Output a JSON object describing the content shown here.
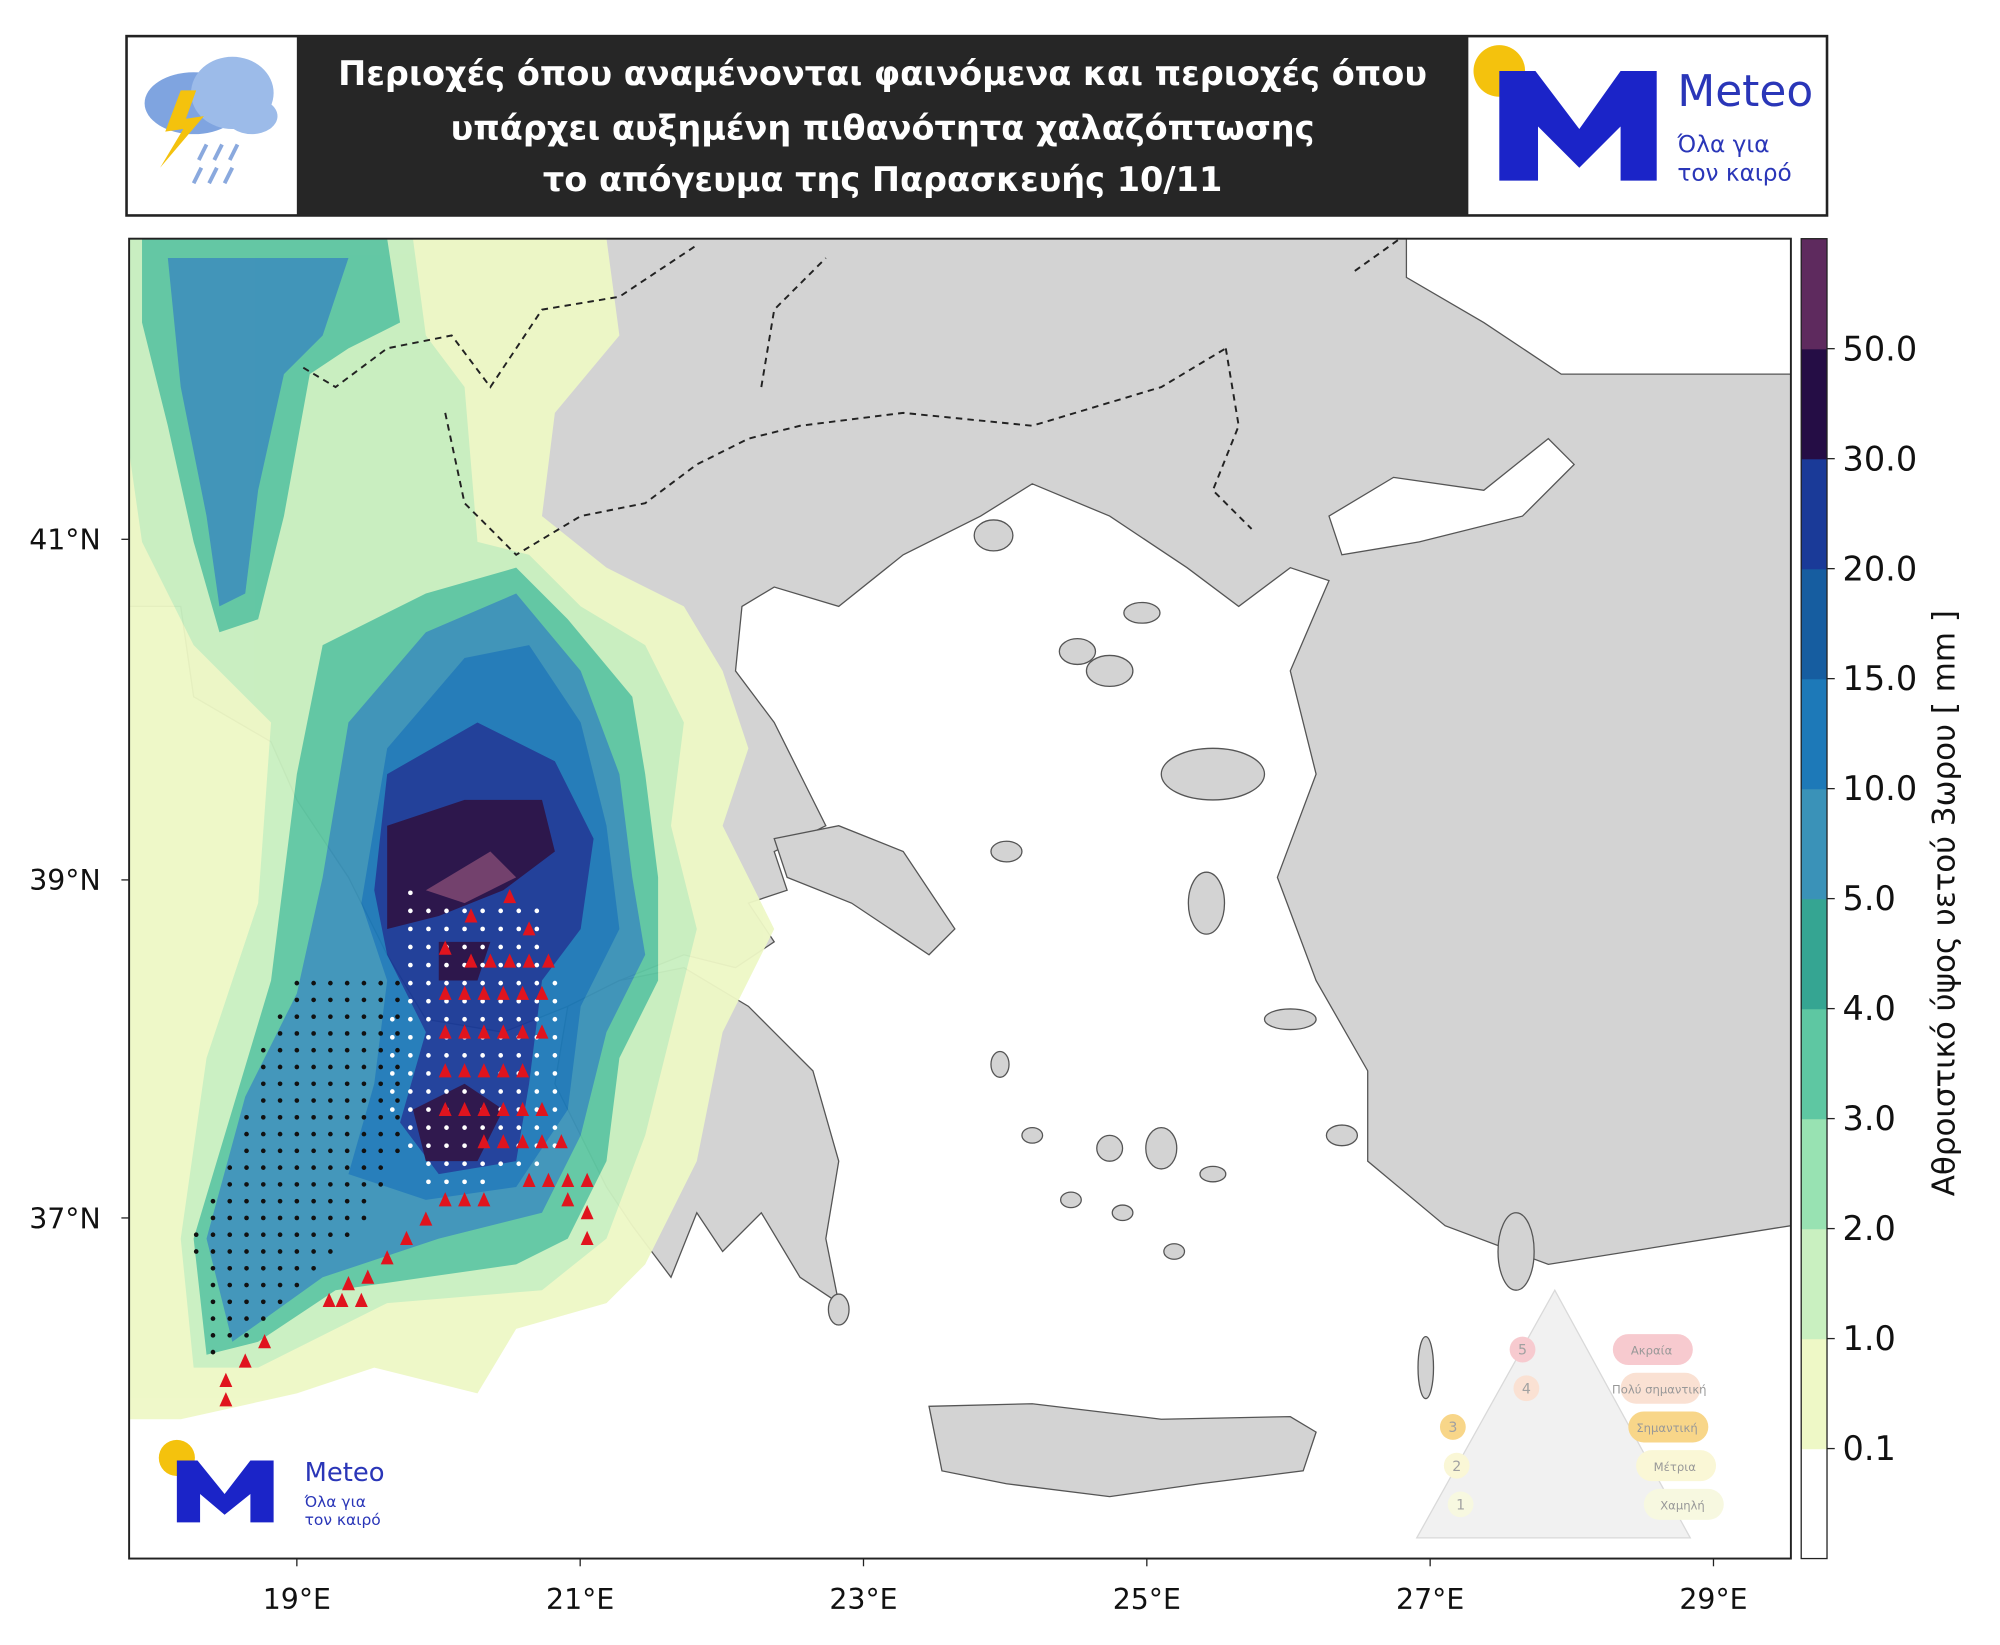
{
  "header": {
    "title": [
      "Περιοχές όπου αναμένονται φαινόμενα και περιοχές όπου",
      "υπάρχει αυξημένη πιθανότητα χαλαζόπτωσης",
      "το απόγευμα της Παρασκευής 10/11"
    ],
    "logo": {
      "brand": "Meteo",
      "tagline": [
        "Όλα για",
        "τον καιρό"
      ]
    }
  },
  "map": {
    "lat_labels": [
      "41°N",
      "39°N",
      "37°N"
    ],
    "lon_labels": [
      "19°E",
      "21°E",
      "23°E",
      "25°E",
      "27°E",
      "29°E"
    ],
    "logo": {
      "brand": "Meteo",
      "tagline": [
        "Όλα για",
        "τον καιρό"
      ]
    },
    "risk_scale": {
      "levels": [
        {
          "number": "5",
          "label": "Ακραία"
        },
        {
          "number": "4",
          "label": "Πολύ σημαντική"
        },
        {
          "number": "3",
          "label": "Σημαντική"
        },
        {
          "number": "2",
          "label": "Μέτρια"
        },
        {
          "number": "1",
          "label": "Χαμηλή"
        }
      ]
    }
  },
  "colorbar": {
    "title": "Αθροιστικό ύψος υετού 3ωρου [ mm ]",
    "labels": [
      "0.1",
      "1.0",
      "2.0",
      "3.0",
      "4.0",
      "5.0",
      "10.0",
      "15.0",
      "20.0",
      "30.0",
      "50.0"
    ]
  }
}
